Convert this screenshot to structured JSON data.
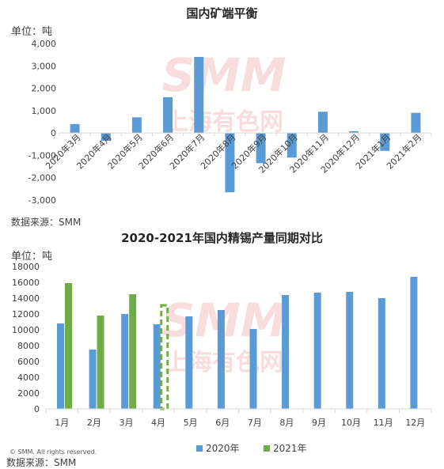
{
  "chart1": {
    "title": "国内矿端平衡",
    "unit": "单位：吨",
    "source": "数据来源：SMM"
  },
  "chart2": {
    "title": "2020-2021年国内精锡产量同期对比",
    "unit": "单位：吨",
    "source": "数据来源：SMM",
    "copyright": "© SMM. All rights reserved."
  },
  "watermark": {
    "logo": "SMM",
    "cn": "上海有色网"
  },
  "colors": {
    "blue": "#5b9bd5",
    "green": "#70ad47",
    "axis": "#d9d9d9",
    "text": "#404040"
  },
  "chart_data": [
    {
      "type": "bar",
      "title": "国内矿端平衡",
      "ylabel": "单位：吨",
      "categories": [
        "2020年3月",
        "2020年4月",
        "2020年5月",
        "2020年6月",
        "2020年7月",
        "2020年8月",
        "2020年9月",
        "2020年10月",
        "2020年11月",
        "2020年12月",
        "2021年1月",
        "2021年2月"
      ],
      "values": [
        400,
        -350,
        700,
        1600,
        3400,
        -2650,
        -1350,
        -1100,
        950,
        80,
        -800,
        900
      ],
      "ylim": [
        -3000,
        4000
      ],
      "yticks": [
        -3000,
        -2000,
        -1000,
        0,
        1000,
        2000,
        3000,
        4000
      ],
      "ytick_labels": [
        "-3,000",
        "-2,000",
        "-1,000",
        "0",
        "1,000",
        "2,000",
        "3,000",
        "4,000"
      ],
      "grid": false
    },
    {
      "type": "bar",
      "title": "2020-2021年国内精锡产量同期对比",
      "ylabel": "单位：吨",
      "categories": [
        "1月",
        "2月",
        "3月",
        "4月",
        "5月",
        "6月",
        "7月",
        "8月",
        "9月",
        "10月",
        "11月",
        "12月"
      ],
      "ylim": [
        0,
        18000
      ],
      "yticks": [
        0,
        2000,
        4000,
        6000,
        8000,
        10000,
        12000,
        14000,
        16000,
        18000
      ],
      "series": [
        {
          "name": "2020年",
          "values": [
            10800,
            7500,
            12000,
            10700,
            11700,
            12500,
            10100,
            14400,
            14700,
            14800,
            14000,
            16700
          ]
        },
        {
          "name": "2021年",
          "values": [
            15900,
            11800,
            14500,
            13100,
            null,
            null,
            null,
            null,
            null,
            null,
            null,
            null
          ],
          "estimated_index": 3
        }
      ],
      "legend": "bottom",
      "grid": false
    }
  ]
}
